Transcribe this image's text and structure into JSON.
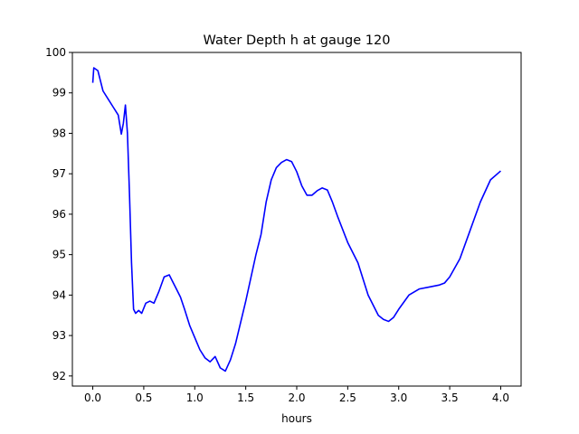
{
  "chart_data": {
    "type": "line",
    "title": "Water Depth h at gauge 120",
    "xlabel": "hours",
    "ylabel": "",
    "xlim": [
      -0.2,
      4.2
    ],
    "ylim": [
      91.75,
      100
    ],
    "xticks": [
      0.0,
      0.5,
      1.0,
      1.5,
      2.0,
      2.5,
      3.0,
      3.5,
      4.0
    ],
    "xtick_labels": [
      "0.0",
      "0.5",
      "1.0",
      "1.5",
      "2.0",
      "2.5",
      "3.0",
      "3.5",
      "4.0"
    ],
    "yticks": [
      92,
      93,
      94,
      95,
      96,
      97,
      98,
      99,
      100
    ],
    "ytick_labels": [
      "92",
      "93",
      "94",
      "95",
      "96",
      "97",
      "98",
      "99",
      "100"
    ],
    "grid": false,
    "legend": "none",
    "series": [
      {
        "color": "#0000ff",
        "x": [
          0.0,
          0.01,
          0.05,
          0.1,
          0.15,
          0.2,
          0.25,
          0.28,
          0.3,
          0.32,
          0.34,
          0.36,
          0.38,
          0.4,
          0.42,
          0.45,
          0.48,
          0.52,
          0.56,
          0.6,
          0.65,
          0.7,
          0.75,
          0.78,
          0.82,
          0.86,
          0.9,
          0.95,
          1.0,
          1.05,
          1.1,
          1.15,
          1.2,
          1.25,
          1.3,
          1.35,
          1.4,
          1.5,
          1.6,
          1.65,
          1.7,
          1.75,
          1.8,
          1.85,
          1.9,
          1.95,
          2.0,
          2.05,
          2.1,
          2.15,
          2.2,
          2.25,
          2.3,
          2.35,
          2.4,
          2.5,
          2.6,
          2.7,
          2.8,
          2.85,
          2.9,
          2.95,
          3.0,
          3.1,
          3.2,
          3.3,
          3.4,
          3.45,
          3.5,
          3.6,
          3.7,
          3.8,
          3.9,
          4.0
        ],
        "y": [
          99.25,
          99.62,
          99.55,
          99.05,
          98.85,
          98.65,
          98.45,
          97.98,
          98.25,
          98.7,
          98.0,
          96.5,
          94.8,
          93.65,
          93.55,
          93.62,
          93.55,
          93.8,
          93.85,
          93.8,
          94.1,
          94.45,
          94.5,
          94.35,
          94.15,
          93.95,
          93.65,
          93.25,
          92.95,
          92.65,
          92.45,
          92.35,
          92.48,
          92.2,
          92.12,
          92.4,
          92.8,
          93.85,
          95.0,
          95.5,
          96.3,
          96.85,
          97.15,
          97.28,
          97.35,
          97.3,
          97.05,
          96.7,
          96.47,
          96.47,
          96.58,
          96.65,
          96.6,
          96.3,
          95.95,
          95.3,
          94.8,
          94.0,
          93.5,
          93.4,
          93.35,
          93.45,
          93.65,
          94.0,
          94.15,
          94.2,
          94.25,
          94.3,
          94.45,
          94.9,
          95.6,
          96.3,
          96.85,
          97.07
        ]
      }
    ]
  }
}
